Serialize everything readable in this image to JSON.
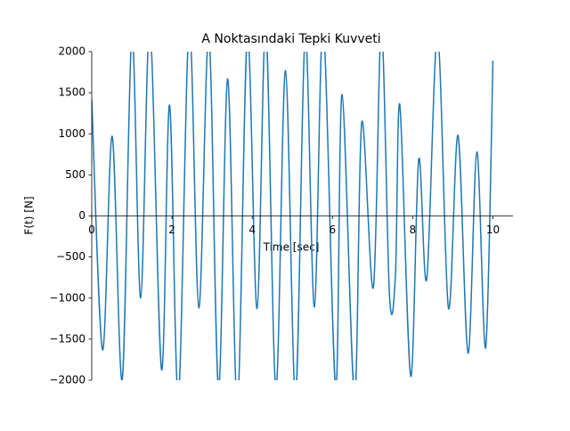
{
  "chart_data": {
    "type": "line",
    "title": "A Noktasındaki Tepki Kuvveti",
    "x_label": "Time [sec]",
    "y_label": "F(t) [N]",
    "x": [
      0,
      0.27,
      0.51,
      0.76,
      1.0,
      1.22,
      1.45,
      1.74,
      1.94,
      2.16,
      2.43,
      2.67,
      2.92,
      3.16,
      3.39,
      3.63,
      3.88,
      4.12,
      4.34,
      4.59,
      4.83,
      5.08,
      5.32,
      5.55,
      5.77,
      6.08,
      6.24,
      6.55,
      6.73,
      7.02,
      7.22,
      7.42,
      7.57,
      7.68,
      7.95,
      8.15,
      8.35,
      8.62,
      8.89,
      9.13,
      9.38,
      9.6,
      9.82,
      10.0
    ],
    "values": [
      1420,
      -1630,
      970,
      -1990,
      2200,
      -1000,
      2300,
      -1870,
      1350,
      -2200,
      2300,
      -1120,
      2200,
      -2100,
      1670,
      -2300,
      2200,
      -1130,
      2300,
      -2100,
      1770,
      -2200,
      2200,
      -1110,
      2300,
      -2100,
      1480,
      -2200,
      1140,
      -870,
      2300,
      -950,
      -720,
      1350,
      -1950,
      690,
      -770,
      2200,
      -1120,
      980,
      -1670,
      780,
      -1600,
      1890
    ],
    "color": "#1f77b4",
    "xlim": [
      0,
      10.5
    ],
    "ylim": [
      -2000,
      2000
    ],
    "xticks": [
      0,
      2,
      4,
      6,
      8,
      10
    ],
    "yticks": [
      {
        "value": -2000,
        "label": "−2000"
      },
      {
        "value": -1500,
        "label": "−1500"
      },
      {
        "value": -1000,
        "label": "−1000"
      },
      {
        "value": -500,
        "label": "−500"
      },
      0,
      500,
      1000,
      1500,
      2000
    ]
  }
}
